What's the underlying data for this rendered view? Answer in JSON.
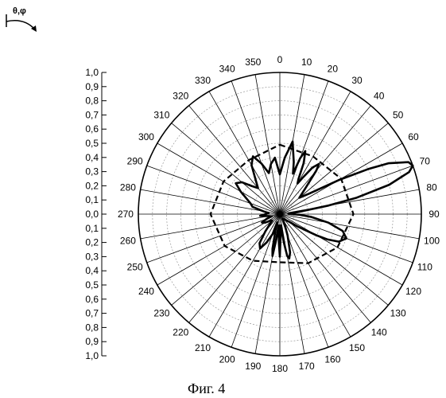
{
  "caption": "Фиг. 4",
  "rotation_symbol": "θ,φ",
  "chart_data": {
    "type": "polar",
    "angle_ticks": [
      "0",
      "10",
      "20",
      "30",
      "40",
      "50",
      "60",
      "70",
      "80",
      "90",
      "100",
      "110",
      "120",
      "130",
      "140",
      "150",
      "160",
      "170",
      "180",
      "190",
      "200",
      "210",
      "220",
      "230",
      "240",
      "250",
      "260",
      "270",
      "280",
      "290",
      "300",
      "310",
      "320",
      "330",
      "340",
      "350"
    ],
    "radial_scale_labels": [
      "1,0",
      "0,9",
      "0,8",
      "0,7",
      "0,6",
      "0,5",
      "0,4",
      "0,3",
      "0,2",
      "0,1",
      "0,0",
      "0,1",
      "0,2",
      "0,3",
      "0,4",
      "0,5",
      "0,6",
      "0,7",
      "0,8",
      "0,9",
      "1,0"
    ],
    "rlim": [
      0,
      1
    ],
    "grid": true,
    "series": [
      {
        "style": "solid-thick",
        "theta_deg": [
          0,
          5,
          10,
          15,
          18,
          20,
          22,
          25,
          28,
          30,
          32,
          35,
          38,
          40,
          45,
          50,
          55,
          60,
          63,
          65,
          68,
          70,
          72,
          75,
          78,
          80,
          82,
          85,
          88,
          90,
          92,
          95,
          100,
          105,
          110,
          115,
          118,
          120,
          125,
          130,
          135,
          140,
          145,
          150,
          155,
          160,
          165,
          168,
          170,
          172,
          175,
          178,
          180,
          182,
          185,
          188,
          190,
          192,
          195,
          198,
          200,
          205,
          210,
          215,
          220,
          225,
          230,
          235,
          240,
          245,
          250,
          255,
          260,
          265,
          270,
          275,
          280,
          285,
          290,
          295,
          300,
          305,
          310,
          315,
          320,
          325,
          330,
          335,
          340,
          345,
          350,
          355,
          360
        ],
        "r": [
          0.28,
          0.4,
          0.52,
          0.38,
          0.3,
          0.42,
          0.48,
          0.4,
          0.28,
          0.25,
          0.3,
          0.4,
          0.45,
          0.4,
          0.25,
          0.18,
          0.25,
          0.48,
          0.7,
          0.85,
          0.98,
          1.0,
          0.96,
          0.8,
          0.55,
          0.35,
          0.18,
          0.1,
          0.06,
          0.08,
          0.14,
          0.22,
          0.35,
          0.46,
          0.5,
          0.46,
          0.38,
          0.3,
          0.15,
          0.08,
          0.06,
          0.05,
          0.04,
          0.04,
          0.08,
          0.16,
          0.28,
          0.32,
          0.3,
          0.2,
          0.08,
          0.15,
          0.3,
          0.2,
          0.08,
          0.18,
          0.3,
          0.25,
          0.12,
          0.06,
          0.15,
          0.22,
          0.28,
          0.25,
          0.16,
          0.1,
          0.07,
          0.08,
          0.12,
          0.14,
          0.1,
          0.06,
          0.08,
          0.14,
          0.1,
          0.08,
          0.12,
          0.2,
          0.22,
          0.26,
          0.32,
          0.38,
          0.35,
          0.28,
          0.24,
          0.3,
          0.4,
          0.45,
          0.38,
          0.3,
          0.36,
          0.4,
          0.28
        ]
      },
      {
        "style": "dashed",
        "theta_deg": [
          0,
          30,
          60,
          90,
          120,
          150,
          180,
          210,
          240,
          270,
          300,
          330,
          360
        ],
        "r": [
          0.49,
          0.47,
          0.5,
          0.52,
          0.47,
          0.4,
          0.34,
          0.38,
          0.45,
          0.49,
          0.46,
          0.44,
          0.49
        ]
      }
    ]
  }
}
